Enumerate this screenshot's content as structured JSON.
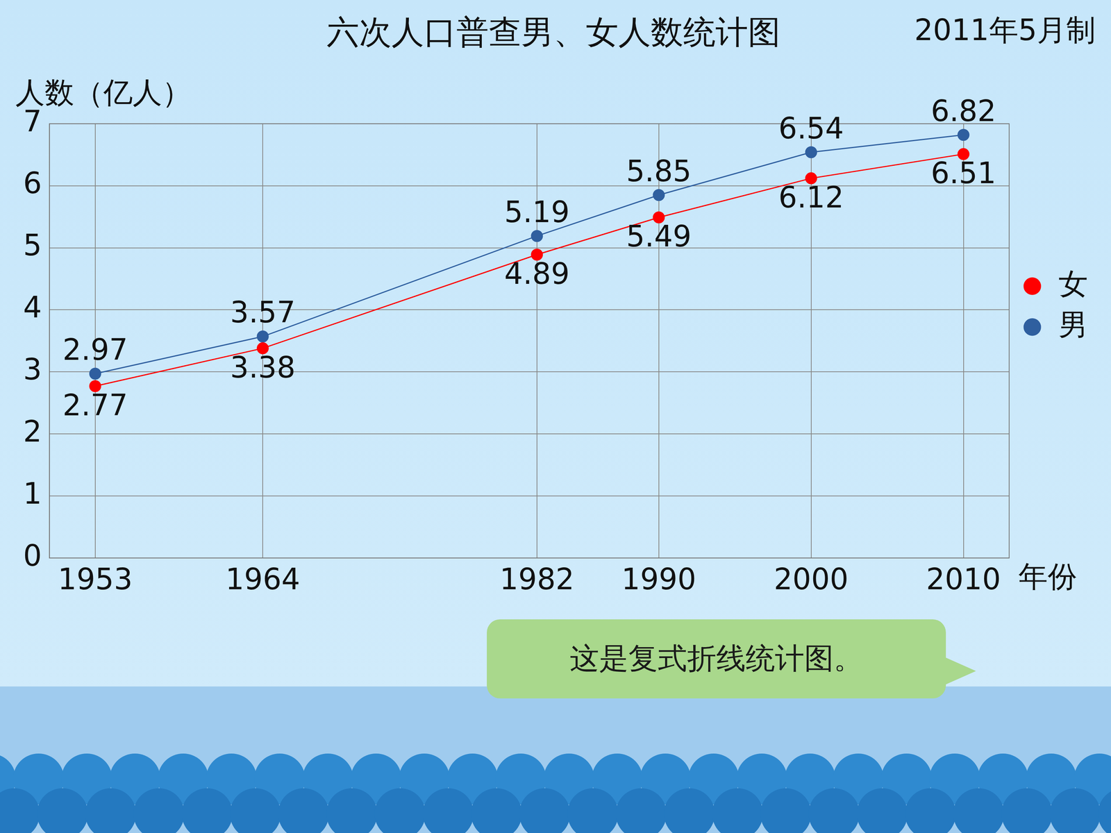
{
  "chart_data": {
    "type": "line",
    "title": "六次人口普查男、女人数统计图",
    "x_label": "年份",
    "y_label": "人数（亿人）",
    "annotations": [
      "2011年5月制",
      "这是复式折线统计图。"
    ],
    "x": [
      1953,
      1964,
      1982,
      1990,
      2000,
      2010
    ],
    "series": [
      {
        "name": "女",
        "color": "#ff0000",
        "marker": "circle",
        "values": [
          2.77,
          3.38,
          4.89,
          5.49,
          6.12,
          6.51
        ]
      },
      {
        "name": "男",
        "color": "#2f5f9f",
        "marker": "circle",
        "values": [
          2.97,
          3.57,
          5.19,
          5.85,
          6.54,
          6.82
        ]
      }
    ],
    "xlim": [
      1950,
      2013
    ],
    "xticks": [
      1953,
      1964,
      1982,
      1990,
      2000,
      2010
    ],
    "ylim": [
      0,
      7
    ],
    "yticks": [
      0,
      1,
      2,
      3,
      4,
      5,
      6,
      7
    ],
    "grid": true,
    "legend": "right",
    "data_labels": true
  }
}
